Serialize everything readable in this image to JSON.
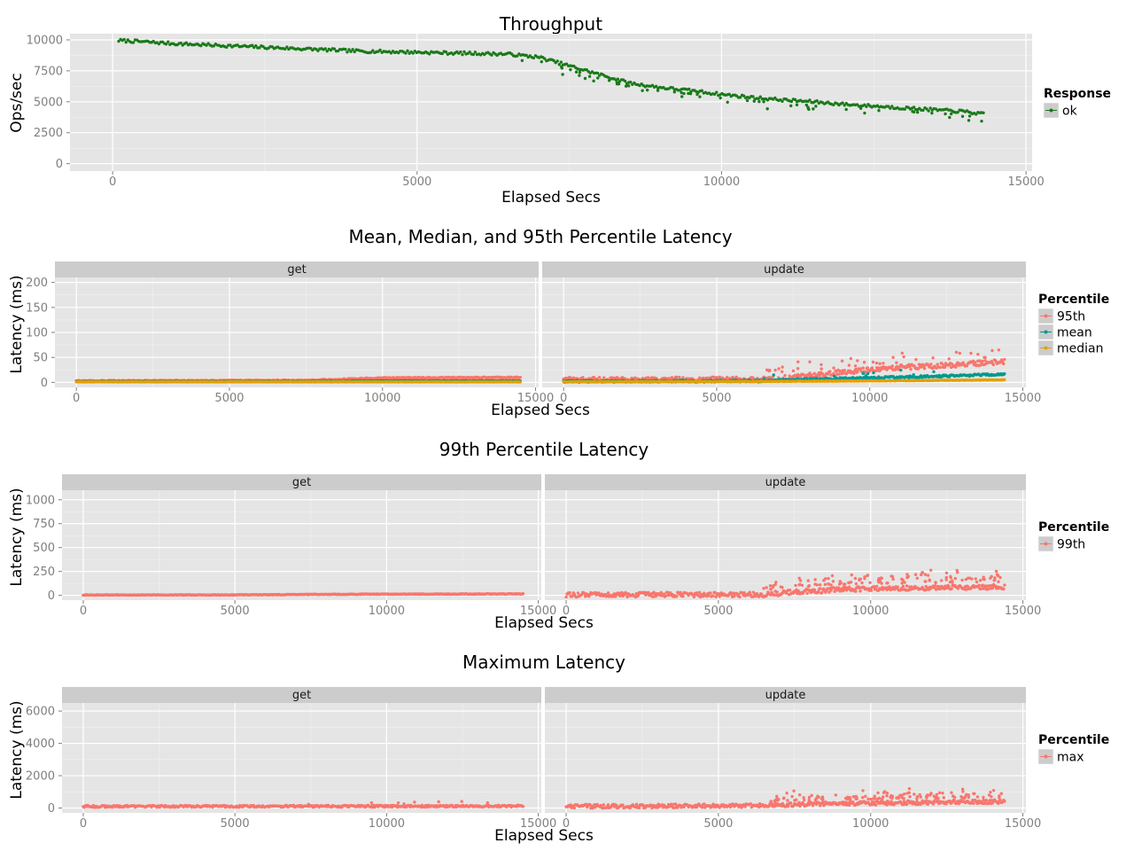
{
  "figure": {
    "width": 1280,
    "height": 960
  },
  "chart_data": [
    {
      "type": "scatter",
      "title": "Throughput",
      "xlabel": "Elapsed Secs",
      "ylabel": "Ops/sec",
      "xlim": [
        -700,
        15100
      ],
      "ylim": [
        -600,
        10500
      ],
      "xticks": [
        0,
        5000,
        10000,
        15000
      ],
      "xtick_labels": [
        "0",
        "5000",
        "10000",
        "15000"
      ],
      "yticks": [
        0,
        2500,
        5000,
        7500,
        10000
      ],
      "ytick_labels": [
        "0",
        "2500",
        "5000",
        "7500",
        "10000"
      ],
      "legend": {
        "title": "Response",
        "position": "right",
        "entries": [
          {
            "label": "ok",
            "color": "#1a7a1a"
          }
        ]
      },
      "series": [
        {
          "name": "ok",
          "color": "#1a7a1a",
          "x": [
            100,
            500,
            1000,
            1500,
            2000,
            2500,
            3000,
            3500,
            4000,
            4500,
            5000,
            5500,
            6000,
            6500,
            7000,
            7500,
            8000,
            8500,
            9000,
            9500,
            10000,
            10500,
            11000,
            11500,
            12000,
            12500,
            13000,
            13500,
            14000,
            14300
          ],
          "y": [
            9950,
            9850,
            9700,
            9600,
            9500,
            9400,
            9300,
            9200,
            9100,
            9050,
            9000,
            8950,
            8900,
            8850,
            8600,
            7900,
            7200,
            6500,
            6150,
            5900,
            5600,
            5350,
            5150,
            5000,
            4800,
            4650,
            4500,
            4350,
            4200,
            4000
          ],
          "spread": 120,
          "outliers": 60
        }
      ]
    },
    {
      "type": "scatter",
      "title": "Mean, Median, and 95th Percentile Latency",
      "xlabel": "Elapsed Secs",
      "ylabel": "Latency (ms)",
      "xlim": [
        -700,
        15100
      ],
      "ylim": [
        -10,
        210
      ],
      "xticks": [
        0,
        5000,
        10000,
        15000
      ],
      "xtick_labels": [
        "0",
        "5000",
        "10000",
        "15000"
      ],
      "yticks": [
        0,
        50,
        100,
        150,
        200
      ],
      "ytick_labels": [
        "0",
        "50",
        "100",
        "150",
        "200"
      ],
      "facets": [
        "get",
        "update"
      ],
      "legend": {
        "title": "Percentile",
        "position": "right",
        "entries": [
          {
            "label": "95th",
            "color": "#f8766d"
          },
          {
            "label": "mean",
            "color": "#00998f"
          },
          {
            "label": "median",
            "color": "#e69f00"
          }
        ]
      },
      "series": [
        {
          "facet": "get",
          "name": "95th",
          "color": "#f8766d",
          "x": [
            0,
            7500,
            9000,
            10000,
            14500
          ],
          "y": [
            3,
            4,
            7,
            9,
            10
          ],
          "spread": 1,
          "outliers": 0
        },
        {
          "facet": "get",
          "name": "mean",
          "color": "#00998f",
          "x": [
            0,
            7500,
            10000,
            14500
          ],
          "y": [
            2,
            2,
            3,
            3
          ],
          "spread": 0.5,
          "outliers": 0
        },
        {
          "facet": "get",
          "name": "median",
          "color": "#e69f00",
          "x": [
            0,
            14500
          ],
          "y": [
            1,
            1
          ],
          "spread": 0.3,
          "outliers": 0
        },
        {
          "facet": "update",
          "name": "95th",
          "color": "#f8766d",
          "x": [
            0,
            6500,
            7500,
            9000,
            10000,
            11000,
            12000,
            13000,
            14400
          ],
          "y": [
            5,
            6,
            10,
            20,
            25,
            30,
            33,
            36,
            42
          ],
          "spread": 5,
          "outliers": 40
        },
        {
          "facet": "update",
          "name": "mean",
          "color": "#00998f",
          "x": [
            0,
            6500,
            8000,
            10000,
            12000,
            14400
          ],
          "y": [
            2,
            3,
            6,
            9,
            12,
            16
          ],
          "spread": 2,
          "outliers": 10
        },
        {
          "facet": "update",
          "name": "median",
          "color": "#e69f00",
          "x": [
            0,
            7000,
            10000,
            14400
          ],
          "y": [
            1,
            2,
            3,
            5
          ],
          "spread": 0.5,
          "outliers": 0
        }
      ]
    },
    {
      "type": "scatter",
      "title": "99th Percentile Latency",
      "xlabel": "Elapsed Secs",
      "ylabel": "Latency (ms)",
      "xlim": [
        -700,
        15100
      ],
      "ylim": [
        -50,
        1100
      ],
      "xticks": [
        0,
        5000,
        10000,
        15000
      ],
      "xtick_labels": [
        "0",
        "5000",
        "10000",
        "15000"
      ],
      "yticks": [
        0,
        250,
        500,
        750,
        1000
      ],
      "ytick_labels": [
        "0",
        "250",
        "500",
        "750",
        "1000"
      ],
      "facets": [
        "get",
        "update"
      ],
      "legend": {
        "title": "Percentile",
        "position": "right",
        "entries": [
          {
            "label": "99th",
            "color": "#f8766d"
          }
        ]
      },
      "series": [
        {
          "facet": "get",
          "name": "99th",
          "color": "#f8766d",
          "x": [
            0,
            5000,
            9500,
            14500
          ],
          "y": [
            4,
            5,
            13,
            15
          ],
          "spread": 3,
          "outliers": 0
        },
        {
          "facet": "update",
          "name": "99th",
          "color": "#f8766d",
          "x": [
            0,
            6500,
            7500,
            9000,
            10000,
            12000,
            14400
          ],
          "y": [
            5,
            8,
            35,
            60,
            70,
            80,
            90
          ],
          "spread": 25,
          "outliers": 120
        }
      ]
    },
    {
      "type": "scatter",
      "title": "Maximum Latency",
      "xlabel": "Elapsed Secs",
      "ylabel": "Latency (ms)",
      "xlim": [
        -700,
        15100
      ],
      "ylim": [
        -300,
        6500
      ],
      "xticks": [
        0,
        5000,
        10000,
        15000
      ],
      "xtick_labels": [
        "0",
        "5000",
        "10000",
        "15000"
      ],
      "yticks": [
        0,
        2000,
        4000,
        6000
      ],
      "ytick_labels": [
        "0",
        "2000",
        "4000",
        "6000"
      ],
      "facets": [
        "get",
        "update"
      ],
      "legend": {
        "title": "Percentile",
        "position": "right",
        "entries": [
          {
            "label": "max",
            "color": "#f8766d"
          }
        ]
      },
      "series": [
        {
          "facet": "get",
          "name": "max",
          "color": "#f8766d",
          "x": [
            0,
            14500
          ],
          "y": [
            100,
            120
          ],
          "spread": 60,
          "outliers": 8
        },
        {
          "facet": "update",
          "name": "max",
          "color": "#f8766d",
          "x": [
            0,
            6500,
            8000,
            10000,
            12000,
            14400
          ],
          "y": [
            100,
            150,
            250,
            300,
            350,
            400
          ],
          "spread": 120,
          "outliers": 120
        }
      ]
    }
  ]
}
